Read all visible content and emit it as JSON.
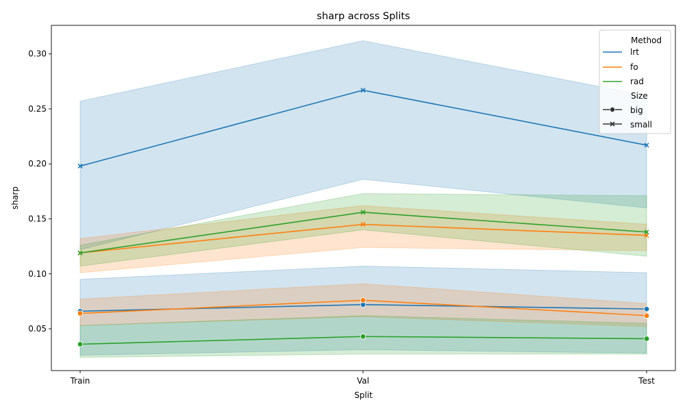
{
  "chart_data": {
    "type": "line",
    "title": "sharp across Splits",
    "xlabel": "Split",
    "ylabel": "sharp",
    "categories": [
      "Train",
      "Val",
      "Test"
    ],
    "ylim": [
      0.012,
      0.326
    ],
    "yticks": [
      0.05,
      0.1,
      0.15,
      0.2,
      0.25,
      0.3
    ],
    "ytick_labels": [
      "0.05",
      "0.10",
      "0.15",
      "0.20",
      "0.25",
      "0.30"
    ],
    "grid": false,
    "legend_position": "top-right",
    "legend": {
      "hue_title": "Method",
      "size_title": "Size",
      "methods": [
        {
          "name": "lrt",
          "color": "#1f77b4"
        },
        {
          "name": "fo",
          "color": "#ff7f0e"
        },
        {
          "name": "rad",
          "color": "#2ca02c"
        }
      ],
      "sizes": [
        {
          "name": "big",
          "marker": "circle"
        },
        {
          "name": "small",
          "marker": "x"
        }
      ]
    },
    "series": [
      {
        "method": "lrt",
        "size": "small",
        "color": "#1f77b4",
        "marker": "x",
        "values": [
          0.198,
          0.267,
          0.217
        ],
        "lower": [
          0.122,
          0.186,
          0.16
        ],
        "upper": [
          0.257,
          0.312,
          0.262
        ]
      },
      {
        "method": "fo",
        "size": "small",
        "color": "#ff7f0e",
        "marker": "x",
        "values": [
          0.119,
          0.145,
          0.135
        ],
        "lower": [
          0.101,
          0.124,
          0.121
        ],
        "upper": [
          0.132,
          0.162,
          0.145
        ]
      },
      {
        "method": "rad",
        "size": "small",
        "color": "#2ca02c",
        "marker": "x",
        "values": [
          0.119,
          0.156,
          0.138
        ],
        "lower": [
          0.107,
          0.14,
          0.116
        ],
        "upper": [
          0.126,
          0.173,
          0.171
        ]
      },
      {
        "method": "lrt",
        "size": "big",
        "color": "#1f77b4",
        "marker": "circle",
        "values": [
          0.066,
          0.072,
          0.068
        ],
        "lower": [
          0.026,
          0.031,
          0.028
        ],
        "upper": [
          0.095,
          0.107,
          0.101
        ]
      },
      {
        "method": "fo",
        "size": "big",
        "color": "#ff7f0e",
        "marker": "circle",
        "values": [
          0.064,
          0.076,
          0.062
        ],
        "lower": [
          0.053,
          0.061,
          0.052
        ],
        "upper": [
          0.077,
          0.091,
          0.073
        ]
      },
      {
        "method": "rad",
        "size": "big",
        "color": "#2ca02c",
        "marker": "circle",
        "values": [
          0.036,
          0.043,
          0.041
        ],
        "lower": [
          0.024,
          0.027,
          0.027
        ],
        "upper": [
          0.053,
          0.062,
          0.055
        ]
      }
    ]
  }
}
